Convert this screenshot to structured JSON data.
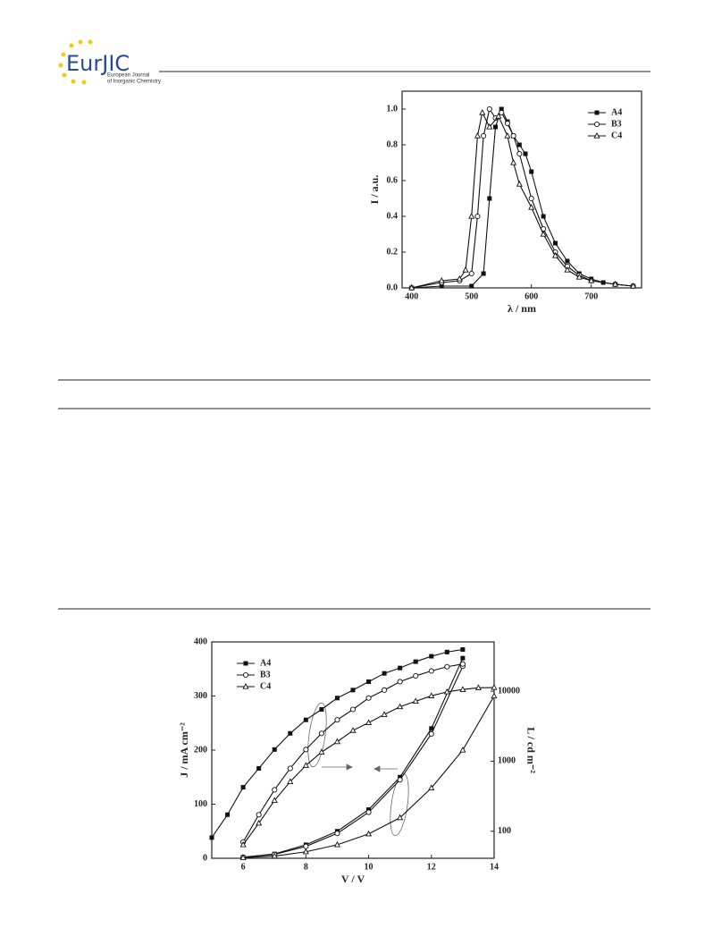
{
  "header": {
    "logo_title": "EurJIC",
    "logo_subtitle_1": "European Journal",
    "logo_subtitle_2": "of Inorganic Chemistry"
  },
  "chart_data": [
    {
      "type": "line",
      "x_label": "λ / nm",
      "y_label": "I / a.u.",
      "xlim": [
        384,
        784
      ],
      "ylim": [
        0,
        1.1
      ],
      "xticks": [
        400,
        500,
        600,
        700
      ],
      "yticks": [
        {
          "value": 0,
          "label": "0.0"
        },
        0.2,
        0.4,
        0.6,
        0.8,
        {
          "value": 1,
          "label": "1.0"
        }
      ],
      "legend": "upper right",
      "series": [
        {
          "name": "A4",
          "color": "#111111",
          "marker": "square",
          "x": [
            400,
            450,
            500,
            520,
            530,
            540,
            550,
            560,
            570,
            580,
            590,
            600,
            620,
            640,
            660,
            680,
            700,
            720,
            740,
            770
          ],
          "values": [
            0,
            0.01,
            0.01,
            0.08,
            0.5,
            0.9,
            1.0,
            0.93,
            0.85,
            0.8,
            0.75,
            0.65,
            0.4,
            0.25,
            0.15,
            0.08,
            0.05,
            0.03,
            0.02,
            0.01
          ]
        },
        {
          "name": "B3",
          "color": "#111111",
          "marker": "circle",
          "x": [
            400,
            450,
            480,
            500,
            510,
            520,
            530,
            540,
            550,
            560,
            570,
            580,
            600,
            620,
            640,
            660,
            680,
            700,
            740,
            770
          ],
          "values": [
            0,
            0.03,
            0.04,
            0.08,
            0.4,
            0.85,
            1.0,
            0.95,
            0.98,
            0.92,
            0.85,
            0.75,
            0.5,
            0.33,
            0.2,
            0.12,
            0.07,
            0.04,
            0.02,
            0.01
          ]
        },
        {
          "name": "C4",
          "color": "#111111",
          "marker": "triangle",
          "x": [
            400,
            450,
            480,
            490,
            500,
            510,
            518,
            530,
            545,
            560,
            570,
            580,
            600,
            620,
            640,
            660,
            680,
            700,
            740,
            770
          ],
          "values": [
            0,
            0.04,
            0.05,
            0.1,
            0.4,
            0.85,
            0.98,
            0.9,
            0.96,
            0.85,
            0.7,
            0.58,
            0.45,
            0.3,
            0.18,
            0.1,
            0.06,
            0.04,
            0.02,
            0.01
          ]
        }
      ]
    },
    {
      "type": "line",
      "x_label": "V / V",
      "y_label": "J / mA cm⁻²",
      "y2_label": "L / cd m⁻²",
      "xlim": [
        5,
        14
      ],
      "ylim": [
        0,
        400
      ],
      "y2lim": [
        41,
        50700
      ],
      "y2_log": true,
      "xticks": [
        6,
        8,
        10,
        12,
        14
      ],
      "yticks": [
        0,
        100,
        200,
        300,
        400
      ],
      "y2ticks": [
        100,
        1000,
        10000
      ],
      "legend": "upper left",
      "series": [
        {
          "name": "A4",
          "color": "#111111",
          "marker": "square",
          "x": [
            6,
            7,
            8,
            9,
            10,
            11,
            12,
            13
          ],
          "values": [
            2,
            8,
            25,
            50,
            90,
            150,
            240,
            370
          ]
        },
        {
          "name": "B3",
          "color": "#111111",
          "marker": "circle",
          "x": [
            6,
            7,
            8,
            9,
            10,
            11,
            12,
            13
          ],
          "values": [
            2,
            7,
            22,
            46,
            85,
            145,
            230,
            355
          ]
        },
        {
          "name": "C4",
          "color": "#111111",
          "marker": "triangle",
          "x": [
            6,
            7,
            8,
            9,
            10,
            11,
            12,
            13,
            14
          ],
          "values": [
            1,
            4,
            12,
            25,
            45,
            75,
            130,
            200,
            300
          ]
        },
        {
          "axis": "y2",
          "color": "#111111",
          "marker": "square",
          "x": [
            5,
            5.5,
            6,
            6.5,
            7,
            7.5,
            8,
            8.5,
            9,
            9.5,
            10,
            10.5,
            11,
            11.5,
            12,
            12.5,
            13
          ],
          "values": [
            81,
            172,
            424,
            790,
            1470,
            2500,
            3900,
            5500,
            8000,
            10400,
            13700,
            18000,
            21500,
            26500,
            31600,
            36300,
            39500
          ]
        },
        {
          "axis": "y2",
          "color": "#111111",
          "marker": "circle",
          "x": [
            6,
            6.5,
            7,
            7.5,
            8,
            8.5,
            9,
            9.5,
            10,
            10.5,
            11,
            11.5,
            12,
            12.5,
            13
          ],
          "values": [
            70,
            172,
            390,
            790,
            1470,
            2500,
            3900,
            5500,
            8000,
            10400,
            13700,
            16600,
            19500,
            22400,
            24500
          ]
        },
        {
          "axis": "y2",
          "color": "#111111",
          "marker": "triangle",
          "x": [
            6,
            6.5,
            7,
            7.5,
            8,
            8.5,
            9,
            9.5,
            10,
            10.5,
            11,
            11.5,
            12,
            12.5,
            13,
            13.5,
            14
          ],
          "values": [
            64,
            130,
            275,
            510,
            870,
            1350,
            1900,
            2750,
            3550,
            4650,
            6000,
            7200,
            8600,
            9800,
            10600,
            11200,
            11300
          ]
        }
      ]
    }
  ]
}
